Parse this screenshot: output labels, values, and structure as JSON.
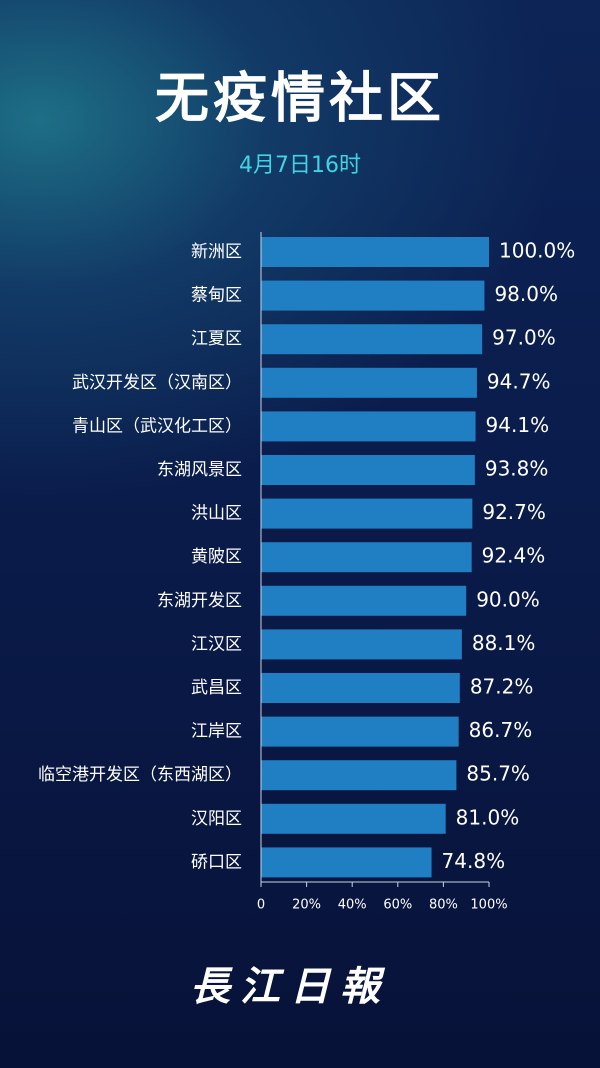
{
  "chart_data": {
    "type": "bar",
    "orientation": "horizontal",
    "title": "无疫情社区",
    "subtitle": "4月7日16时",
    "source": "長江日報",
    "categories": [
      "新洲区",
      "蔡甸区",
      "江夏区",
      "武汉开发区（汉南区）",
      "青山区（武汉化工区）",
      "东湖风景区",
      "洪山区",
      "黄陂区",
      "东湖开发区",
      "江汉区",
      "武昌区",
      "江岸区",
      "临空港开发区（东西湖区）",
      "汉阳区",
      "硚口区"
    ],
    "values": [
      100.0,
      98.0,
      97.0,
      94.7,
      94.1,
      93.8,
      92.7,
      92.4,
      90.0,
      88.1,
      87.2,
      86.7,
      85.7,
      81.0,
      74.8
    ],
    "value_labels": [
      "100.0%",
      "98.0%",
      "97.0%",
      "94.7%",
      "94.1%",
      "93.8%",
      "92.7%",
      "92.4%",
      "90.0%",
      "88.1%",
      "87.2%",
      "86.7%",
      "85.7%",
      "81.0%",
      "74.8%"
    ],
    "color": "#1f7fc2",
    "xlim": [
      0,
      100
    ],
    "xticks": [
      0,
      {
        "value": 20,
        "label": "20%"
      },
      {
        "value": 40,
        "label": "40%"
      },
      {
        "value": 60,
        "label": "60%"
      },
      {
        "value": 80,
        "label": "80%"
      },
      {
        "value": 100,
        "label": "100%"
      }
    ]
  }
}
